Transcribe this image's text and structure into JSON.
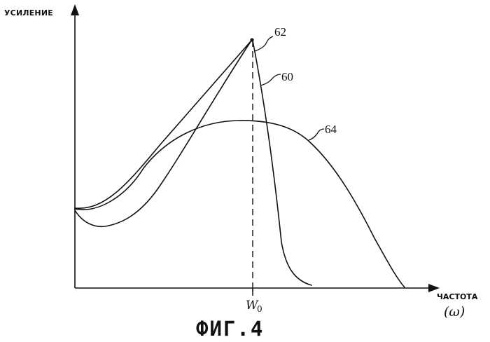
{
  "y_axis_label": "УСИЛЕНИЕ",
  "x_axis_label": "ЧАСТОТА",
  "x_axis_symbol": "(ω)",
  "center_frequency": {
    "base": "W",
    "subscript": "0"
  },
  "references": {
    "peak_point": "62",
    "steep_curve": "60",
    "broad_curve": "64"
  },
  "caption": "ФИГ.4"
}
